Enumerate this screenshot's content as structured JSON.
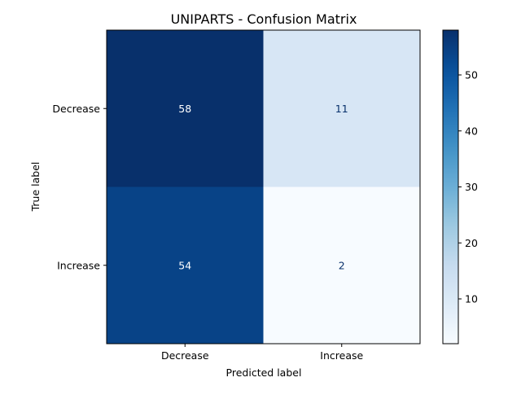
{
  "chart_data": {
    "type": "heatmap",
    "title": "UNIPARTS - Confusion Matrix",
    "xlabel": "Predicted label",
    "ylabel": "True label",
    "x_categories": [
      "Decrease",
      "Increase"
    ],
    "y_categories": [
      "Decrease",
      "Increase"
    ],
    "values": [
      [
        58,
        11
      ],
      [
        54,
        2
      ]
    ],
    "colormap": "Blues",
    "colorbar": {
      "min": 2,
      "max": 58,
      "ticks": [
        10,
        20,
        30,
        40,
        50
      ]
    },
    "grid": false
  }
}
